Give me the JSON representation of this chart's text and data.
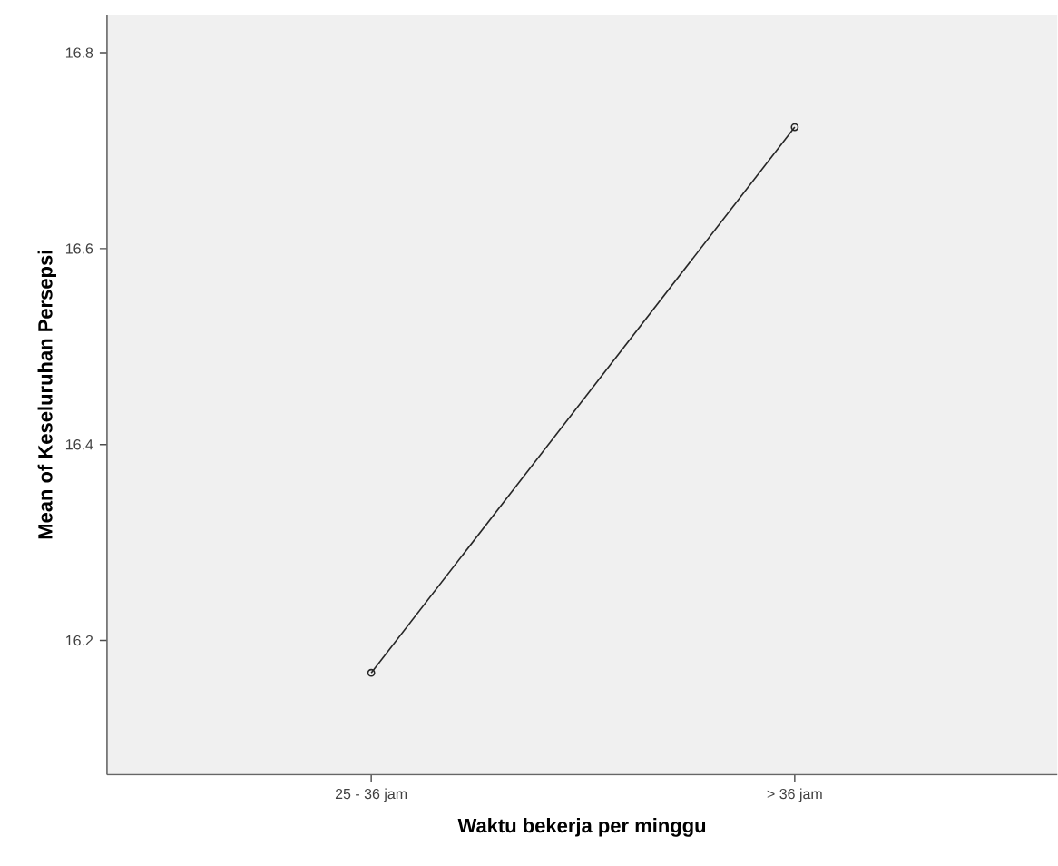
{
  "chart_data": {
    "type": "line",
    "xlabel": "Waktu bekerja per minggu",
    "ylabel": "Mean of Keseluruhan Persepsi",
    "categories": [
      "25 - 36 jam",
      "> 36 jam"
    ],
    "series": [
      {
        "color": "#262626",
        "values": [
          16.167,
          16.724
        ]
      }
    ],
    "ylim": [
      16.063,
      16.839
    ],
    "yticks": [
      16.2,
      16.4,
      16.6,
      16.8
    ],
    "marker": "circle",
    "line_style": "solid",
    "grid": false
  }
}
